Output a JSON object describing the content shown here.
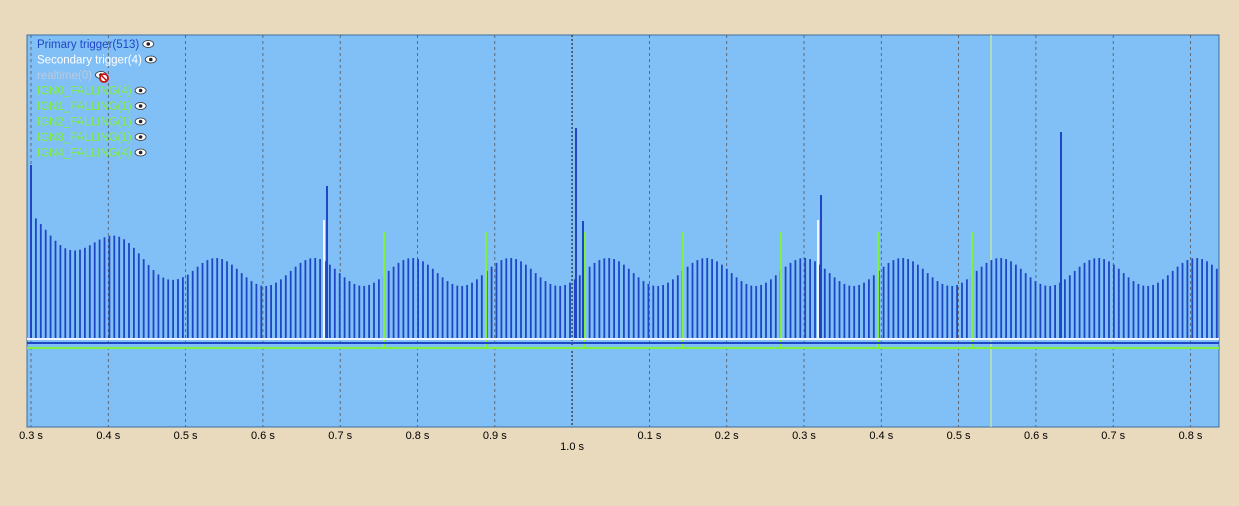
{
  "legend": [
    "Primary trigger(513)",
    "Secondary trigger(4)",
    "realtime(0)",
    "IGN0_FALLING(4)",
    "IGN1_FALLING(1)",
    "IGN2_FALLING(1)",
    "IGN3_FALLING(1)",
    "IGN4_FALLING(4)"
  ],
  "axis": {
    "ticks": [
      "0.3 s",
      "0.4 s",
      "0.5 s",
      "0.6 s",
      "0.7 s",
      "0.8 s",
      "0.9 s",
      "1.0 s",
      "0.1 s",
      "0.2 s",
      "0.3 s",
      "0.4 s",
      "0.5 s",
      "0.6 s",
      "0.7 s",
      "0.8 s"
    ]
  }
}
